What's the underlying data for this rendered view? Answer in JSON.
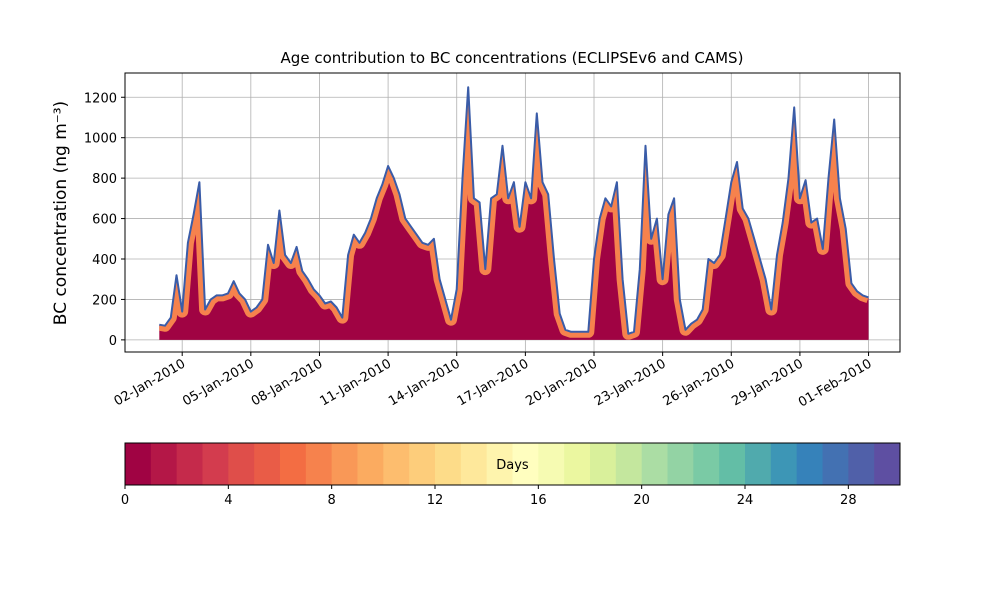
{
  "chart_data": {
    "type": "area",
    "title": "Age contribution to BC concentrations (ECLIPSEv6 and CAMS)",
    "ylabel": "BC concentration (ng m⁻³)",
    "x": [
      "2010-01-01T00:00",
      "2010-01-01T06:00",
      "2010-01-01T12:00",
      "2010-01-01T18:00",
      "2010-01-02T00:00",
      "2010-01-02T06:00",
      "2010-01-02T12:00",
      "2010-01-02T18:00",
      "2010-01-03T00:00",
      "2010-01-03T06:00",
      "2010-01-03T12:00",
      "2010-01-03T18:00",
      "2010-01-04T00:00",
      "2010-01-04T06:00",
      "2010-01-04T12:00",
      "2010-01-04T18:00",
      "2010-01-05T00:00",
      "2010-01-05T06:00",
      "2010-01-05T12:00",
      "2010-01-05T18:00",
      "2010-01-06T00:00",
      "2010-01-06T06:00",
      "2010-01-06T12:00",
      "2010-01-06T18:00",
      "2010-01-07T00:00",
      "2010-01-07T06:00",
      "2010-01-07T12:00",
      "2010-01-07T18:00",
      "2010-01-08T00:00",
      "2010-01-08T06:00",
      "2010-01-08T12:00",
      "2010-01-08T18:00",
      "2010-01-09T00:00",
      "2010-01-09T06:00",
      "2010-01-09T12:00",
      "2010-01-09T18:00",
      "2010-01-10T00:00",
      "2010-01-10T06:00",
      "2010-01-10T12:00",
      "2010-01-10T18:00",
      "2010-01-11T00:00",
      "2010-01-11T06:00",
      "2010-01-11T12:00",
      "2010-01-11T18:00",
      "2010-01-12T00:00",
      "2010-01-12T06:00",
      "2010-01-12T12:00",
      "2010-01-12T18:00",
      "2010-01-13T00:00",
      "2010-01-13T06:00",
      "2010-01-13T12:00",
      "2010-01-13T18:00",
      "2010-01-14T00:00",
      "2010-01-14T06:00",
      "2010-01-14T12:00",
      "2010-01-14T18:00",
      "2010-01-15T00:00",
      "2010-01-15T06:00",
      "2010-01-15T12:00",
      "2010-01-15T18:00",
      "2010-01-16T00:00",
      "2010-01-16T06:00",
      "2010-01-16T12:00",
      "2010-01-16T18:00",
      "2010-01-17T00:00",
      "2010-01-17T06:00",
      "2010-01-17T12:00",
      "2010-01-17T18:00",
      "2010-01-18T00:00",
      "2010-01-18T06:00",
      "2010-01-18T12:00",
      "2010-01-18T18:00",
      "2010-01-19T00:00",
      "2010-01-19T06:00",
      "2010-01-19T12:00",
      "2010-01-19T18:00",
      "2010-01-20T00:00",
      "2010-01-20T06:00",
      "2010-01-20T12:00",
      "2010-01-20T18:00",
      "2010-01-21T00:00",
      "2010-01-21T06:00",
      "2010-01-21T12:00",
      "2010-01-21T18:00",
      "2010-01-22T00:00",
      "2010-01-22T06:00",
      "2010-01-22T12:00",
      "2010-01-22T18:00",
      "2010-01-23T00:00",
      "2010-01-23T06:00",
      "2010-01-23T12:00",
      "2010-01-23T18:00",
      "2010-01-24T00:00",
      "2010-01-24T06:00",
      "2010-01-24T12:00",
      "2010-01-24T18:00",
      "2010-01-25T00:00",
      "2010-01-25T06:00",
      "2010-01-25T12:00",
      "2010-01-25T18:00",
      "2010-01-26T00:00",
      "2010-01-26T06:00",
      "2010-01-26T12:00",
      "2010-01-26T18:00",
      "2010-01-27T00:00",
      "2010-01-27T06:00",
      "2010-01-27T12:00",
      "2010-01-27T18:00",
      "2010-01-28T00:00",
      "2010-01-28T06:00",
      "2010-01-28T12:00",
      "2010-01-28T18:00",
      "2010-01-29T00:00",
      "2010-01-29T06:00",
      "2010-01-29T12:00",
      "2010-01-29T18:00",
      "2010-01-30T00:00",
      "2010-01-30T06:00",
      "2010-01-30T12:00",
      "2010-01-30T18:00",
      "2010-01-31T00:00",
      "2010-01-31T06:00",
      "2010-01-31T12:00",
      "2010-01-31T18:00",
      "2010-02-01T00:00"
    ],
    "values": [
      75,
      70,
      110,
      320,
      140,
      480,
      620,
      780,
      150,
      200,
      220,
      220,
      230,
      290,
      230,
      200,
      140,
      160,
      200,
      470,
      380,
      640,
      420,
      380,
      460,
      340,
      300,
      250,
      220,
      180,
      190,
      160,
      110,
      420,
      520,
      480,
      530,
      600,
      700,
      770,
      860,
      800,
      720,
      600,
      560,
      520,
      480,
      470,
      500,
      300,
      200,
      100,
      250,
      800,
      1250,
      700,
      680,
      350,
      700,
      720,
      960,
      700,
      780,
      560,
      780,
      700,
      1120,
      780,
      720,
      400,
      130,
      50,
      40,
      40,
      40,
      40,
      400,
      600,
      700,
      660,
      780,
      300,
      30,
      40,
      350,
      960,
      500,
      600,
      300,
      620,
      700,
      200,
      50,
      80,
      100,
      150,
      400,
      380,
      420,
      600,
      780,
      880,
      650,
      600,
      500,
      400,
      300,
      150,
      420,
      580,
      800,
      1150,
      700,
      790,
      580,
      600,
      450,
      800,
      1090,
      700,
      550,
      280,
      240,
      220,
      210
    ],
    "color": "#a00343",
    "band_color": "#f6824d",
    "line_color": "#3a5ca8",
    "xlim": [
      "2009-12-30T12:00",
      "2010-02-02T09:00"
    ],
    "xticks": [
      {
        "value": "2010-01-02T00:00",
        "label": "02-Jan-2010"
      },
      {
        "value": "2010-01-05T00:00",
        "label": "05-Jan-2010"
      },
      {
        "value": "2010-01-08T00:00",
        "label": "08-Jan-2010"
      },
      {
        "value": "2010-01-11T00:00",
        "label": "11-Jan-2010"
      },
      {
        "value": "2010-01-14T00:00",
        "label": "14-Jan-2010"
      },
      {
        "value": "2010-01-17T00:00",
        "label": "17-Jan-2010"
      },
      {
        "value": "2010-01-20T00:00",
        "label": "20-Jan-2010"
      },
      {
        "value": "2010-01-23T00:00",
        "label": "23-Jan-2010"
      },
      {
        "value": "2010-01-26T00:00",
        "label": "26-Jan-2010"
      },
      {
        "value": "2010-01-29T00:00",
        "label": "29-Jan-2010"
      },
      {
        "value": "2010-02-01T00:00",
        "label": "01-Feb-2010"
      }
    ],
    "ylim": [
      -60,
      1320
    ],
    "yticks": [
      0,
      200,
      400,
      600,
      800,
      1000,
      1200
    ],
    "grid": true,
    "colorbar": {
      "label": "Days",
      "lim": [
        0,
        30
      ],
      "ticks": [
        0,
        4,
        8,
        12,
        16,
        20,
        24,
        28
      ],
      "colors": [
        "#a00343",
        "#b41747",
        "#c52a4b",
        "#d33c4e",
        "#df4e4a",
        "#e95c47",
        "#f36d43",
        "#f6824d",
        "#f99857",
        "#fbab60",
        "#fdbd6e",
        "#fdcd7b",
        "#fddc89",
        "#fee89b",
        "#fef4ad",
        "#fffebf",
        "#f6fbb2",
        "#ebf7a0",
        "#d9f09b",
        "#c4e79e",
        "#abdda4",
        "#93d3a4",
        "#7acaa5",
        "#63bea6",
        "#50aaad",
        "#3d96b6",
        "#3682ba",
        "#4371b2",
        "#5060a9",
        "#5e4fa2"
      ]
    }
  }
}
